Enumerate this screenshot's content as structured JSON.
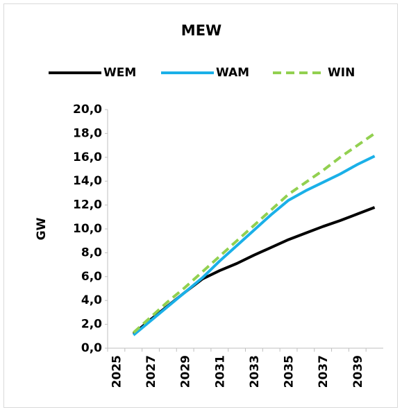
{
  "chart_data": {
    "type": "line",
    "title": "MEW",
    "y_label": "GW",
    "categories": [
      "2025",
      null,
      "2027",
      null,
      "2029",
      null,
      "2031",
      null,
      "2033",
      null,
      "2035",
      null,
      "2037",
      null,
      "2039",
      null
    ],
    "series": [
      {
        "name": "WEM",
        "color": "#000000",
        "dashed": false,
        "values": [
          null,
          1.2,
          2.4,
          3.55,
          4.7,
          5.8,
          6.5,
          7.1,
          7.8,
          8.45,
          9.1,
          9.65,
          10.2,
          10.7,
          11.25,
          11.8
        ]
      },
      {
        "name": "WAM",
        "color": "#1ab0e8",
        "dashed": false,
        "values": [
          null,
          1.1,
          2.3,
          3.5,
          4.7,
          5.9,
          7.3,
          8.6,
          9.9,
          11.2,
          12.4,
          13.2,
          13.9,
          14.6,
          15.4,
          16.1
        ]
      },
      {
        "name": "WIN",
        "color": "#92d050",
        "dashed": true,
        "values": [
          null,
          1.3,
          2.6,
          3.9,
          5.1,
          6.4,
          7.7,
          9.0,
          10.3,
          11.6,
          12.9,
          13.9,
          14.9,
          16.0,
          17.0,
          18.0
        ]
      }
    ],
    "ylim": [
      0,
      20
    ],
    "yticks": [
      {
        "value": 0,
        "label": "0,0"
      },
      {
        "value": 2,
        "label": "2,0"
      },
      {
        "value": 4,
        "label": "4,0"
      },
      {
        "value": 6,
        "label": "6,0"
      },
      {
        "value": 8,
        "label": "8,0"
      },
      {
        "value": 10,
        "label": "10,0"
      },
      {
        "value": 12,
        "label": "12,0"
      },
      {
        "value": 14,
        "label": "14,0"
      },
      {
        "value": 16,
        "label": "16,0"
      },
      {
        "value": 18,
        "label": "18,0"
      },
      {
        "value": 20,
        "label": "20,0"
      }
    ],
    "grid": false,
    "legend": "top"
  }
}
